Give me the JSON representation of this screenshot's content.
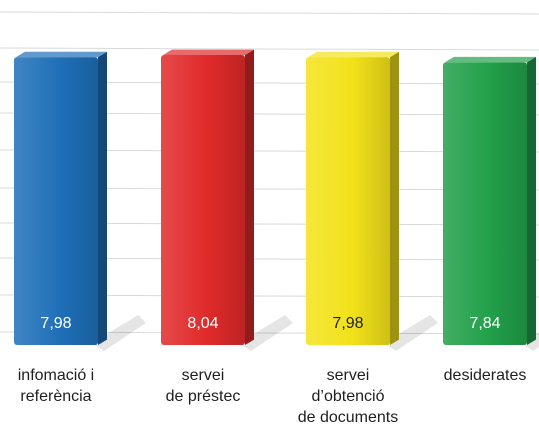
{
  "chart_data": {
    "type": "bar",
    "categories": [
      [
        "infomació i",
        "referència"
      ],
      [
        "servei",
        "de préstec"
      ],
      [
        "servei",
        "d’obtenció",
        "de documents"
      ],
      [
        "desiderates"
      ]
    ],
    "values": [
      7.98,
      8.04,
      7.98,
      7.84
    ],
    "value_labels": [
      "7,98",
      "8,04",
      "7,98",
      "7,84"
    ],
    "colors": [
      "#1f6fb8",
      "#e02a2a",
      "#f2e21a",
      "#22a04a"
    ],
    "value_label_colors": [
      "#ffffff",
      "#ffffff",
      "#1f1f1f",
      "#ffffff"
    ],
    "grid": true,
    "legend": "none"
  }
}
